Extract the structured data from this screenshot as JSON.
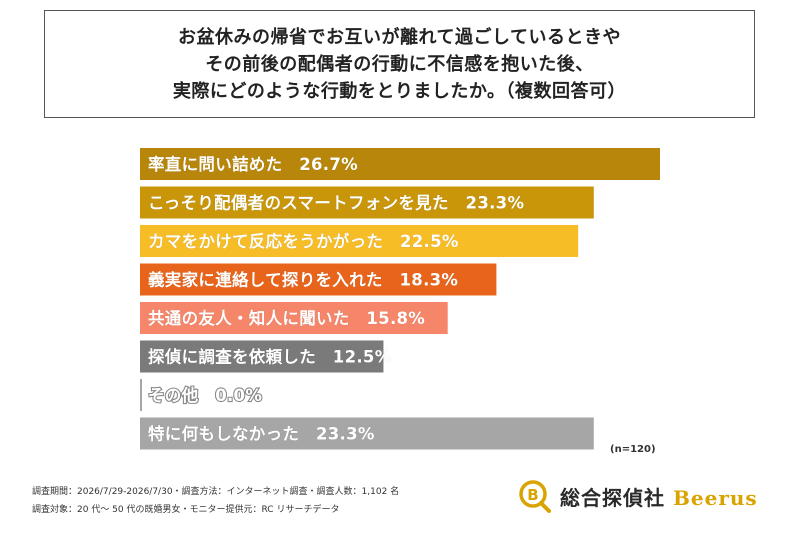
{
  "title": {
    "lines": [
      "お盆休みの帰省でお互いが離れて過ごしているときや",
      "その前後の配偶者の行動に不信感を抱いた後、",
      "実際にどのような行動をとりましたか。（複数回答可）"
    ]
  },
  "chart_data": {
    "type": "bar",
    "orientation": "horizontal",
    "categories": [
      "率直に問い詰めた",
      "こっそり配偶者のスマートフォンを見た",
      "カマをかけて反応をうかがった",
      "義実家に連絡して探りを入れた",
      "共通の友人・知人に聞いた",
      "探偵に調査を依頼した",
      "その他",
      "特に何もしなかった"
    ],
    "values": [
      26.7,
      23.3,
      22.5,
      18.3,
      15.8,
      12.5,
      0.0,
      23.3
    ],
    "value_labels": [
      "26.7%",
      "23.3%",
      "22.5%",
      "18.3%",
      "15.8%",
      "12.5%",
      "0.0%",
      "23.3%"
    ],
    "colors": [
      "#b8860b",
      "#c9960a",
      "#f7bd27",
      "#e8641b",
      "#f5866a",
      "#7a7a7a",
      "#a6a6a6",
      "#a6a6a6"
    ],
    "xlim": [
      0,
      26.7
    ],
    "grid": false,
    "legend": "none"
  },
  "n_label": "(n=120)",
  "footer": {
    "line1": "調査期間：2026/7/29-2026/7/30・調査方法：インターネット調査・調査人数：1,102 名",
    "line2": "調査対象：20 代～ 50 代の既婚男女・モニター提供元：RC リサーチデータ"
  },
  "logo": {
    "text_ja": "総合探偵社",
    "text_en": "Beerus"
  }
}
